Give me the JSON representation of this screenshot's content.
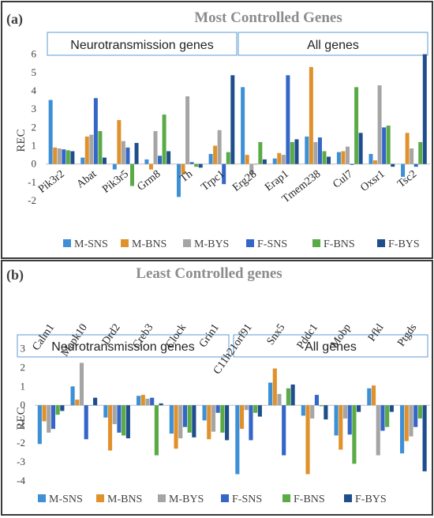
{
  "colors": {
    "M-SNS": "#3d8fd6",
    "M-BNS": "#e0912b",
    "M-BYS": "#a5a5a5",
    "F-SNS": "#3366c7",
    "F-BNS": "#5aaa46",
    "F-BYS": "#1f4e8c",
    "frame": "#3a3a3a",
    "box": "#5b9bd5",
    "title": "#8c8c8c"
  },
  "chart_data": [
    {
      "type": "bar",
      "panel_label": "(a)",
      "title": "Most Controlled Genes",
      "ylabel": "REC",
      "ylim": [
        -2.3,
        6.2
      ],
      "yticks": [
        "-2",
        "-1",
        "0",
        "1",
        "2",
        "3",
        "4",
        "5",
        "6"
      ],
      "group_labels": [
        "Neurotransmission genes",
        "All genes"
      ],
      "categories": [
        "Pik3r2",
        "Abat",
        "Pik3r5",
        "Grm8",
        "Th",
        "Trpc1",
        "Erg28",
        "Erap1",
        "Tmem238",
        "Cul7",
        "Oxsr1",
        "Tsc2"
      ],
      "series": [
        {
          "name": "M-SNS",
          "values": [
            3.5,
            0.35,
            -0.3,
            0.25,
            -1.8,
            0.55,
            4.2,
            0.3,
            1.5,
            0.65,
            0.55,
            -0.7
          ]
        },
        {
          "name": "M-BNS",
          "values": [
            0.9,
            1.5,
            2.4,
            -0.3,
            -0.55,
            1.0,
            0.5,
            0.6,
            5.3,
            0.7,
            0.2,
            1.7
          ]
        },
        {
          "name": "M-BYS",
          "values": [
            0.85,
            1.6,
            1.25,
            1.8,
            3.7,
            1.85,
            -0.6,
            0.5,
            1.2,
            0.95,
            4.3,
            0.85
          ]
        },
        {
          "name": "F-SNS",
          "values": [
            0.8,
            3.6,
            0.9,
            0.45,
            0.1,
            -1.1,
            0.0,
            4.85,
            1.45,
            -0.05,
            2.0,
            -0.15
          ]
        },
        {
          "name": "F-BNS",
          "values": [
            0.75,
            1.8,
            -1.2,
            2.7,
            -0.15,
            0.65,
            1.2,
            1.2,
            0.7,
            4.2,
            2.1,
            1.2
          ]
        },
        {
          "name": "F-BYS",
          "values": [
            0.7,
            0.35,
            1.15,
            0.7,
            -0.2,
            4.85,
            0.25,
            1.35,
            0.4,
            1.7,
            -0.15,
            6.0
          ]
        }
      ]
    },
    {
      "type": "bar",
      "panel_label": "(b)",
      "title": "Least Controlled genes",
      "ylabel": "REC",
      "ylim": [
        -4.3,
        3.4
      ],
      "yticks": [
        "-4",
        "-3",
        "-2",
        "-1",
        "0",
        "1",
        "2",
        "3"
      ],
      "group_labels": [
        "Neurotransmission genes",
        "All genes"
      ],
      "categories": [
        "Calm1",
        "Mapk10",
        "Drd2",
        "Creb3",
        "Clock",
        "Grin1",
        "C11h21orf91",
        "Snx5",
        "Pddc1",
        "Mobp",
        "Pfkl",
        "Ptgds"
      ],
      "series": [
        {
          "name": "M-SNS",
          "values": [
            -2.05,
            1.0,
            -0.65,
            0.5,
            -1.5,
            -0.8,
            -3.65,
            1.2,
            -0.55,
            -1.6,
            0.9,
            -2.55
          ]
        },
        {
          "name": "M-BNS",
          "values": [
            -0.85,
            0.3,
            -2.4,
            0.55,
            -2.3,
            -1.8,
            -1.25,
            1.95,
            -3.65,
            -2.35,
            1.05,
            -1.9
          ]
        },
        {
          "name": "M-BYS",
          "values": [
            -1.45,
            2.25,
            -1.0,
            0.35,
            -1.75,
            -1.4,
            -0.25,
            0.6,
            -0.7,
            -0.7,
            -2.65,
            -1.65
          ]
        },
        {
          "name": "F-SNS",
          "values": [
            -1.25,
            -1.8,
            -1.45,
            0.4,
            -1.15,
            -0.4,
            -1.85,
            -2.65,
            0.55,
            -1.55,
            -1.35,
            -1.15
          ]
        },
        {
          "name": "F-BNS",
          "values": [
            -0.5,
            0.0,
            -1.6,
            -2.65,
            -1.45,
            -1.45,
            -0.4,
            0.9,
            -0.05,
            -3.1,
            -1.15,
            -0.7
          ]
        },
        {
          "name": "F-BYS",
          "values": [
            -0.3,
            0.4,
            -1.75,
            0.1,
            -1.7,
            -1.85,
            -0.6,
            1.1,
            -0.75,
            -0.35,
            -0.35,
            -3.5
          ]
        }
      ]
    }
  ]
}
